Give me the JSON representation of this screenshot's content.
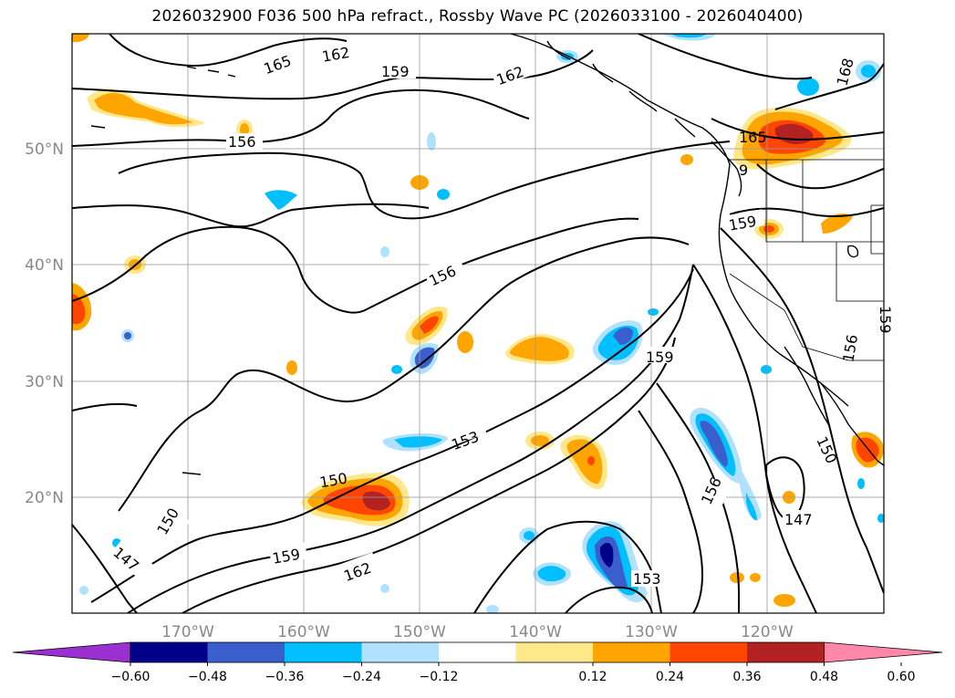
{
  "title": "2026032900 F036 500 hPa refract., Rossby Wave PC (2026033100 - 2026040400)",
  "lon_labels": [
    "170°W",
    "160°W",
    "150°W",
    "140°W",
    "130°W",
    "120°W"
  ],
  "lat_labels": [
    "50°N",
    "40°N",
    "30°N",
    "20°N"
  ],
  "contour_labels": [
    "165",
    "162",
    "159",
    "162",
    "168",
    "156",
    "165",
    "9",
    "159",
    "156",
    "159",
    "159",
    "156",
    "153",
    "150",
    "150",
    "147",
    "150",
    "156",
    "147",
    "159",
    "162",
    "153"
  ],
  "colorbar": {
    "ticks": [
      "−0.60",
      "−0.48",
      "−0.36",
      "−0.24",
      "−0.12",
      "0.12",
      "0.24",
      "0.36",
      "0.48",
      "0.60"
    ],
    "colors": [
      "#9b30d0",
      "#00008b",
      "#3a5fcd",
      "#00bfff",
      "#b0e2ff",
      "#ffffff",
      "#ffe88a",
      "#ffa500",
      "#ff4500",
      "#b22222",
      "#ff88aa"
    ]
  }
}
